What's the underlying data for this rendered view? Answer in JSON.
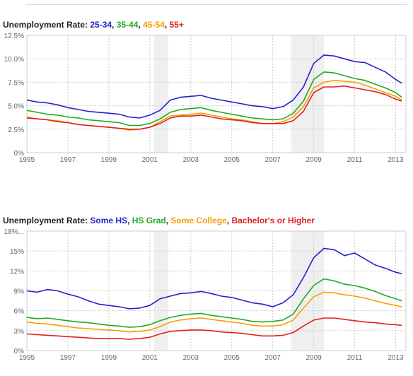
{
  "chart_data": [
    {
      "type": "line",
      "title_parts": [
        {
          "text": "Unemployment Rate: ",
          "color": "#222222"
        },
        {
          "text": "25-34",
          "color": "#2222cc"
        },
        {
          "text": ", ",
          "color": "#222222"
        },
        {
          "text": "35-44",
          "color": "#22aa22"
        },
        {
          "text": ", ",
          "color": "#222222"
        },
        {
          "text": "45-54",
          "color": "#f5a000"
        },
        {
          "text": ", ",
          "color": "#222222"
        },
        {
          "text": "55+",
          "color": "#e02020"
        }
      ],
      "xlim": [
        1995,
        2013.5
      ],
      "ylim": [
        0,
        12.5
      ],
      "x_ticks": [
        1995,
        1997,
        1999,
        2001,
        2003,
        2005,
        2007,
        2009,
        2011,
        2013
      ],
      "y_ticks": [
        {
          "value": 0,
          "label": "0%"
        },
        {
          "value": 2.5,
          "label": "2.5%"
        },
        {
          "value": 5,
          "label": "5.0%"
        },
        {
          "value": 7.5,
          "label": "7.5%"
        },
        {
          "value": 10,
          "label": "10.0%"
        },
        {
          "value": 12.5,
          "label": "12.5%"
        }
      ],
      "recessions": [
        [
          2001.2,
          2001.9
        ],
        [
          2007.9,
          2009.5
        ]
      ],
      "grid": true,
      "series": [
        {
          "name": "25-34",
          "color": "#2222cc",
          "x": [
            1995.0,
            1995.5,
            1996.0,
            1996.5,
            1997.0,
            1997.5,
            1998.0,
            1998.5,
            1999.0,
            1999.5,
            2000.0,
            2000.5,
            2001.0,
            2001.5,
            2002.0,
            2002.5,
            2003.0,
            2003.5,
            2004.0,
            2004.5,
            2005.0,
            2005.5,
            2006.0,
            2006.5,
            2007.0,
            2007.5,
            2008.0,
            2008.5,
            2009.0,
            2009.5,
            2010.0,
            2010.5,
            2011.0,
            2011.5,
            2012.0,
            2012.5,
            2013.0,
            2013.3
          ],
          "y": [
            5.6,
            5.4,
            5.3,
            5.1,
            4.8,
            4.6,
            4.4,
            4.3,
            4.2,
            4.1,
            3.8,
            3.7,
            4.0,
            4.5,
            5.6,
            5.9,
            6.0,
            6.1,
            5.8,
            5.6,
            5.4,
            5.2,
            5.0,
            4.9,
            4.7,
            4.9,
            5.6,
            7.0,
            9.5,
            10.4,
            10.3,
            10.0,
            9.7,
            9.6,
            9.1,
            8.6,
            7.8,
            7.4
          ]
        },
        {
          "name": "35-44",
          "color": "#22aa22",
          "x": [
            1995.0,
            1995.5,
            1996.0,
            1996.5,
            1997.0,
            1997.5,
            1998.0,
            1998.5,
            1999.0,
            1999.5,
            2000.0,
            2000.5,
            2001.0,
            2001.5,
            2002.0,
            2002.5,
            2003.0,
            2003.5,
            2004.0,
            2004.5,
            2005.0,
            2005.5,
            2006.0,
            2006.5,
            2007.0,
            2007.5,
            2008.0,
            2008.5,
            2009.0,
            2009.5,
            2010.0,
            2010.5,
            2011.0,
            2011.5,
            2012.0,
            2012.5,
            2013.0,
            2013.3
          ],
          "y": [
            4.5,
            4.3,
            4.1,
            4.0,
            3.8,
            3.7,
            3.5,
            3.4,
            3.3,
            3.2,
            2.9,
            2.9,
            3.1,
            3.6,
            4.3,
            4.6,
            4.7,
            4.8,
            4.5,
            4.3,
            4.1,
            3.9,
            3.7,
            3.6,
            3.5,
            3.6,
            4.2,
            5.5,
            7.8,
            8.6,
            8.5,
            8.2,
            7.9,
            7.7,
            7.3,
            6.9,
            6.4,
            5.9
          ]
        },
        {
          "name": "45-54",
          "color": "#f5a000",
          "x": [
            1995.0,
            1995.5,
            1996.0,
            1996.5,
            1997.0,
            1997.5,
            1998.0,
            1998.5,
            1999.0,
            1999.5,
            2000.0,
            2000.5,
            2001.0,
            2001.5,
            2002.0,
            2002.5,
            2003.0,
            2003.5,
            2004.0,
            2004.5,
            2005.0,
            2005.5,
            2006.0,
            2006.5,
            2007.0,
            2007.5,
            2008.0,
            2008.5,
            2009.0,
            2009.5,
            2010.0,
            2010.5,
            2011.0,
            2011.5,
            2012.0,
            2012.5,
            2013.0,
            2013.3
          ],
          "y": [
            3.8,
            3.6,
            3.5,
            3.4,
            3.2,
            3.0,
            2.9,
            2.8,
            2.7,
            2.6,
            2.4,
            2.5,
            2.7,
            3.3,
            3.9,
            4.0,
            4.1,
            4.2,
            4.0,
            3.8,
            3.6,
            3.5,
            3.3,
            3.1,
            3.1,
            3.3,
            3.8,
            4.9,
            6.9,
            7.5,
            7.7,
            7.6,
            7.5,
            7.2,
            6.8,
            6.4,
            6.0,
            5.6
          ]
        },
        {
          "name": "55+",
          "color": "#e02020",
          "x": [
            1995.0,
            1995.5,
            1996.0,
            1996.5,
            1997.0,
            1997.5,
            1998.0,
            1998.5,
            1999.0,
            1999.5,
            2000.0,
            2000.5,
            2001.0,
            2001.5,
            2002.0,
            2002.5,
            2003.0,
            2003.5,
            2004.0,
            2004.5,
            2005.0,
            2005.5,
            2006.0,
            2006.5,
            2007.0,
            2007.5,
            2008.0,
            2008.5,
            2009.0,
            2009.5,
            2010.0,
            2010.5,
            2011.0,
            2011.5,
            2012.0,
            2012.5,
            2013.0,
            2013.3
          ],
          "y": [
            3.7,
            3.6,
            3.5,
            3.3,
            3.2,
            3.0,
            2.9,
            2.8,
            2.7,
            2.6,
            2.5,
            2.5,
            2.7,
            3.1,
            3.7,
            3.9,
            3.9,
            4.0,
            3.8,
            3.6,
            3.5,
            3.4,
            3.2,
            3.1,
            3.1,
            3.1,
            3.4,
            4.4,
            6.4,
            7.0,
            7.0,
            7.1,
            6.9,
            6.7,
            6.5,
            6.2,
            5.7,
            5.5
          ]
        }
      ]
    },
    {
      "type": "line",
      "title_parts": [
        {
          "text": "Unemployment Rate: ",
          "color": "#222222"
        },
        {
          "text": "Some HS",
          "color": "#2222cc"
        },
        {
          "text": ", ",
          "color": "#222222"
        },
        {
          "text": "HS Grad",
          "color": "#22aa22"
        },
        {
          "text": ", ",
          "color": "#222222"
        },
        {
          "text": "Some College",
          "color": "#f5a000"
        },
        {
          "text": ", ",
          "color": "#222222"
        },
        {
          "text": "Bachelor's or Higher",
          "color": "#e02020"
        }
      ],
      "xlim": [
        1995,
        2013.5
      ],
      "ylim": [
        0,
        18
      ],
      "x_ticks": [
        1995,
        1997,
        1999,
        2001,
        2003,
        2005,
        2007,
        2009,
        2011,
        2013
      ],
      "y_ticks": [
        {
          "value": 0,
          "label": "0%"
        },
        {
          "value": 3,
          "label": "3%"
        },
        {
          "value": 6,
          "label": "6%"
        },
        {
          "value": 9,
          "label": "9%"
        },
        {
          "value": 12,
          "label": "12%"
        },
        {
          "value": 15,
          "label": "15%"
        },
        {
          "value": 18,
          "label": "18%..."
        }
      ],
      "recessions": [
        [
          2001.2,
          2001.9
        ],
        [
          2007.9,
          2009.5
        ]
      ],
      "grid": true,
      "series": [
        {
          "name": "Some HS",
          "color": "#2222cc",
          "x": [
            1995.0,
            1995.5,
            1996.0,
            1996.5,
            1997.0,
            1997.5,
            1998.0,
            1998.5,
            1999.0,
            1999.5,
            2000.0,
            2000.5,
            2001.0,
            2001.5,
            2002.0,
            2002.5,
            2003.0,
            2003.5,
            2004.0,
            2004.5,
            2005.0,
            2005.5,
            2006.0,
            2006.5,
            2007.0,
            2007.5,
            2008.0,
            2008.5,
            2009.0,
            2009.5,
            2010.0,
            2010.5,
            2011.0,
            2011.5,
            2012.0,
            2012.5,
            2013.0,
            2013.3
          ],
          "y": [
            9.0,
            8.8,
            9.2,
            9.0,
            8.5,
            8.1,
            7.5,
            7.0,
            6.8,
            6.6,
            6.3,
            6.4,
            6.8,
            7.8,
            8.2,
            8.6,
            8.7,
            8.9,
            8.6,
            8.2,
            8.0,
            7.6,
            7.2,
            7.0,
            6.6,
            7.2,
            8.4,
            11.0,
            14.0,
            15.4,
            15.2,
            14.3,
            14.7,
            13.8,
            12.9,
            12.4,
            11.8,
            11.6
          ]
        },
        {
          "name": "HS Grad",
          "color": "#22aa22",
          "x": [
            1995.0,
            1995.5,
            1996.0,
            1996.5,
            1997.0,
            1997.5,
            1998.0,
            1998.5,
            1999.0,
            1999.5,
            2000.0,
            2000.5,
            2001.0,
            2001.5,
            2002.0,
            2002.5,
            2003.0,
            2003.5,
            2004.0,
            2004.5,
            2005.0,
            2005.5,
            2006.0,
            2006.5,
            2007.0,
            2007.5,
            2008.0,
            2008.5,
            2009.0,
            2009.5,
            2010.0,
            2010.5,
            2011.0,
            2011.5,
            2012.0,
            2012.5,
            2013.0,
            2013.3
          ],
          "y": [
            5.0,
            4.8,
            4.9,
            4.7,
            4.5,
            4.3,
            4.2,
            4.0,
            3.8,
            3.7,
            3.5,
            3.6,
            3.9,
            4.5,
            5.0,
            5.3,
            5.5,
            5.6,
            5.3,
            5.1,
            4.9,
            4.7,
            4.4,
            4.3,
            4.4,
            4.6,
            5.5,
            7.8,
            9.8,
            10.8,
            10.5,
            10.0,
            9.8,
            9.4,
            8.9,
            8.3,
            7.8,
            7.5
          ]
        },
        {
          "name": "Some College",
          "color": "#f5a000",
          "x": [
            1995.0,
            1995.5,
            1996.0,
            1996.5,
            1997.0,
            1997.5,
            1998.0,
            1998.5,
            1999.0,
            1999.5,
            2000.0,
            2000.5,
            2001.0,
            2001.5,
            2002.0,
            2002.5,
            2003.0,
            2003.5,
            2004.0,
            2004.5,
            2005.0,
            2005.5,
            2006.0,
            2006.5,
            2007.0,
            2007.5,
            2008.0,
            2008.5,
            2009.0,
            2009.5,
            2010.0,
            2010.5,
            2011.0,
            2011.5,
            2012.0,
            2012.5,
            2013.0,
            2013.3
          ],
          "y": [
            4.3,
            4.1,
            4.0,
            3.8,
            3.6,
            3.4,
            3.3,
            3.2,
            3.1,
            3.0,
            2.8,
            2.9,
            3.1,
            3.6,
            4.3,
            4.6,
            4.8,
            4.9,
            4.7,
            4.5,
            4.3,
            4.1,
            3.8,
            3.7,
            3.7,
            3.9,
            4.6,
            6.4,
            8.1,
            8.8,
            8.7,
            8.4,
            8.2,
            7.9,
            7.5,
            7.1,
            6.8,
            6.6
          ]
        },
        {
          "name": "Bachelor's or Higher",
          "color": "#e02020",
          "x": [
            1995.0,
            1995.5,
            1996.0,
            1996.5,
            1997.0,
            1997.5,
            1998.0,
            1998.5,
            1999.0,
            1999.5,
            2000.0,
            2000.5,
            2001.0,
            2001.5,
            2002.0,
            2002.5,
            2003.0,
            2003.5,
            2004.0,
            2004.5,
            2005.0,
            2005.5,
            2006.0,
            2006.5,
            2007.0,
            2007.5,
            2008.0,
            2008.5,
            2009.0,
            2009.5,
            2010.0,
            2010.5,
            2011.0,
            2011.5,
            2012.0,
            2012.5,
            2013.0,
            2013.3
          ],
          "y": [
            2.5,
            2.4,
            2.3,
            2.2,
            2.1,
            2.0,
            1.9,
            1.8,
            1.8,
            1.8,
            1.7,
            1.8,
            2.0,
            2.5,
            2.9,
            3.0,
            3.1,
            3.1,
            3.0,
            2.8,
            2.7,
            2.6,
            2.4,
            2.2,
            2.2,
            2.3,
            2.7,
            3.7,
            4.6,
            4.9,
            4.9,
            4.7,
            4.5,
            4.3,
            4.2,
            4.0,
            3.9,
            3.8
          ]
        }
      ]
    }
  ]
}
